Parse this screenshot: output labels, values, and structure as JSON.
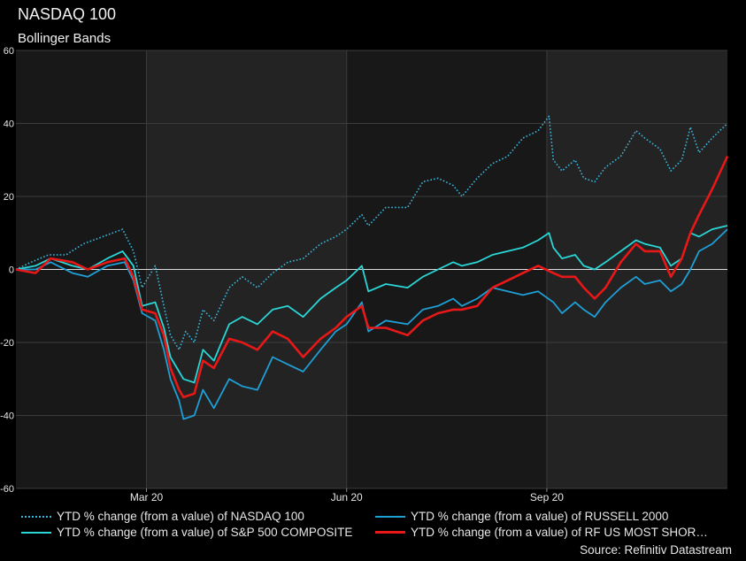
{
  "title": "NASDAQ 100",
  "subtitle": "Bollinger Bands",
  "source": "Source: Refinitiv Datastream",
  "colors": {
    "background": "#000000",
    "plot_bg_dark": "#181818",
    "plot_bg_light": "#232323",
    "grid": "#3c3c3c",
    "zero_line": "#dcdcdc",
    "nasdaq": "#3ab8e0",
    "russell": "#1e9fd6",
    "sp500": "#2ad6d6",
    "rf": "#e81818"
  },
  "chart_data": {
    "type": "line",
    "title": "NASDAQ 100",
    "subtitle": "Bollinger Bands",
    "x_tick_labels": [
      "Mar 20",
      "Jun 20",
      "Sep 20"
    ],
    "y_tick_labels": [
      "60",
      "40",
      "20",
      "0",
      "-20",
      "-40",
      "-60"
    ],
    "ylim": [
      -60,
      60
    ],
    "xlim": [
      "2020-01-01",
      "2020-11-23"
    ],
    "x_ticks": [
      "2020-03-01",
      "2020-06-01",
      "2020-09-01"
    ],
    "grid": true,
    "legend_position": "bottom",
    "series": [
      {
        "name": "YTD % change (from a value) of NASDAQ 100",
        "style": "dotted",
        "points": [
          [
            "2020-01-01",
            0
          ],
          [
            "2020-01-08",
            2
          ],
          [
            "2020-01-16",
            4
          ],
          [
            "2020-01-24",
            4
          ],
          [
            "2020-02-01",
            7
          ],
          [
            "2020-02-10",
            9
          ],
          [
            "2020-02-19",
            11
          ],
          [
            "2020-02-24",
            5
          ],
          [
            "2020-02-28",
            -5
          ],
          [
            "2020-03-05",
            1
          ],
          [
            "2020-03-09",
            -10
          ],
          [
            "2020-03-12",
            -18
          ],
          [
            "2020-03-16",
            -22
          ],
          [
            "2020-03-19",
            -17
          ],
          [
            "2020-03-23",
            -20
          ],
          [
            "2020-03-27",
            -11
          ],
          [
            "2020-04-01",
            -14
          ],
          [
            "2020-04-08",
            -5
          ],
          [
            "2020-04-14",
            -2
          ],
          [
            "2020-04-21",
            -5
          ],
          [
            "2020-04-28",
            -1
          ],
          [
            "2020-05-05",
            2
          ],
          [
            "2020-05-12",
            3
          ],
          [
            "2020-05-20",
            7
          ],
          [
            "2020-05-27",
            9
          ],
          [
            "2020-06-01",
            11
          ],
          [
            "2020-06-08",
            15
          ],
          [
            "2020-06-11",
            12
          ],
          [
            "2020-06-19",
            17
          ],
          [
            "2020-06-29",
            17
          ],
          [
            "2020-07-06",
            24
          ],
          [
            "2020-07-13",
            25
          ],
          [
            "2020-07-20",
            23
          ],
          [
            "2020-07-24",
            20
          ],
          [
            "2020-07-31",
            25
          ],
          [
            "2020-08-07",
            29
          ],
          [
            "2020-08-14",
            31
          ],
          [
            "2020-08-21",
            36
          ],
          [
            "2020-08-28",
            38
          ],
          [
            "2020-09-02",
            42
          ],
          [
            "2020-09-04",
            30
          ],
          [
            "2020-09-08",
            27
          ],
          [
            "2020-09-14",
            30
          ],
          [
            "2020-09-18",
            25
          ],
          [
            "2020-09-23",
            24
          ],
          [
            "2020-09-28",
            28
          ],
          [
            "2020-10-05",
            31
          ],
          [
            "2020-10-12",
            38
          ],
          [
            "2020-10-16",
            36
          ],
          [
            "2020-10-23",
            33
          ],
          [
            "2020-10-28",
            27
          ],
          [
            "2020-11-02",
            30
          ],
          [
            "2020-11-06",
            39
          ],
          [
            "2020-11-10",
            32
          ],
          [
            "2020-11-16",
            36
          ],
          [
            "2020-11-23",
            40
          ]
        ]
      },
      {
        "name": "YTD % change (from a value) of RUSSELL 2000",
        "style": "solid",
        "points": [
          [
            "2020-01-01",
            0
          ],
          [
            "2020-01-10",
            0
          ],
          [
            "2020-01-17",
            2
          ],
          [
            "2020-01-27",
            -1
          ],
          [
            "2020-02-03",
            -2
          ],
          [
            "2020-02-12",
            1
          ],
          [
            "2020-02-20",
            2
          ],
          [
            "2020-02-24",
            -3
          ],
          [
            "2020-02-28",
            -12
          ],
          [
            "2020-03-05",
            -14
          ],
          [
            "2020-03-09",
            -22
          ],
          [
            "2020-03-12",
            -30
          ],
          [
            "2020-03-16",
            -36
          ],
          [
            "2020-03-18",
            -41
          ],
          [
            "2020-03-23",
            -40
          ],
          [
            "2020-03-27",
            -33
          ],
          [
            "2020-04-01",
            -38
          ],
          [
            "2020-04-08",
            -30
          ],
          [
            "2020-04-14",
            -32
          ],
          [
            "2020-04-21",
            -33
          ],
          [
            "2020-04-28",
            -24
          ],
          [
            "2020-05-05",
            -26
          ],
          [
            "2020-05-12",
            -28
          ],
          [
            "2020-05-20",
            -22
          ],
          [
            "2020-05-27",
            -17
          ],
          [
            "2020-06-01",
            -15
          ],
          [
            "2020-06-08",
            -9
          ],
          [
            "2020-06-11",
            -17
          ],
          [
            "2020-06-19",
            -14
          ],
          [
            "2020-06-29",
            -15
          ],
          [
            "2020-07-06",
            -11
          ],
          [
            "2020-07-13",
            -10
          ],
          [
            "2020-07-20",
            -8
          ],
          [
            "2020-07-24",
            -10
          ],
          [
            "2020-07-31",
            -8
          ],
          [
            "2020-08-07",
            -5
          ],
          [
            "2020-08-14",
            -6
          ],
          [
            "2020-08-21",
            -7
          ],
          [
            "2020-08-28",
            -6
          ],
          [
            "2020-09-04",
            -9
          ],
          [
            "2020-09-08",
            -12
          ],
          [
            "2020-09-14",
            -9
          ],
          [
            "2020-09-18",
            -11
          ],
          [
            "2020-09-23",
            -13
          ],
          [
            "2020-09-28",
            -9
          ],
          [
            "2020-10-05",
            -5
          ],
          [
            "2020-10-12",
            -2
          ],
          [
            "2020-10-16",
            -4
          ],
          [
            "2020-10-23",
            -3
          ],
          [
            "2020-10-28",
            -6
          ],
          [
            "2020-11-02",
            -4
          ],
          [
            "2020-11-06",
            0
          ],
          [
            "2020-11-10",
            5
          ],
          [
            "2020-11-16",
            7
          ],
          [
            "2020-11-23",
            11
          ]
        ]
      },
      {
        "name": "YTD % change (from a value) of S&P 500 COMPOSITE",
        "style": "solid",
        "points": [
          [
            "2020-01-01",
            0
          ],
          [
            "2020-01-10",
            1
          ],
          [
            "2020-01-17",
            3
          ],
          [
            "2020-01-27",
            1
          ],
          [
            "2020-02-03",
            0
          ],
          [
            "2020-02-12",
            3
          ],
          [
            "2020-02-19",
            5
          ],
          [
            "2020-02-24",
            1
          ],
          [
            "2020-02-28",
            -10
          ],
          [
            "2020-03-05",
            -9
          ],
          [
            "2020-03-09",
            -16
          ],
          [
            "2020-03-12",
            -24
          ],
          [
            "2020-03-16",
            -28
          ],
          [
            "2020-03-18",
            -30
          ],
          [
            "2020-03-23",
            -31
          ],
          [
            "2020-03-27",
            -22
          ],
          [
            "2020-04-01",
            -25
          ],
          [
            "2020-04-08",
            -15
          ],
          [
            "2020-04-14",
            -13
          ],
          [
            "2020-04-21",
            -15
          ],
          [
            "2020-04-28",
            -11
          ],
          [
            "2020-05-05",
            -10
          ],
          [
            "2020-05-12",
            -13
          ],
          [
            "2020-05-20",
            -8
          ],
          [
            "2020-05-27",
            -5
          ],
          [
            "2020-06-01",
            -3
          ],
          [
            "2020-06-08",
            1
          ],
          [
            "2020-06-11",
            -6
          ],
          [
            "2020-06-19",
            -4
          ],
          [
            "2020-06-29",
            -5
          ],
          [
            "2020-07-06",
            -2
          ],
          [
            "2020-07-13",
            0
          ],
          [
            "2020-07-20",
            2
          ],
          [
            "2020-07-24",
            1
          ],
          [
            "2020-07-31",
            2
          ],
          [
            "2020-08-07",
            4
          ],
          [
            "2020-08-14",
            5
          ],
          [
            "2020-08-21",
            6
          ],
          [
            "2020-08-28",
            8
          ],
          [
            "2020-09-02",
            10
          ],
          [
            "2020-09-04",
            6
          ],
          [
            "2020-09-08",
            3
          ],
          [
            "2020-09-14",
            4
          ],
          [
            "2020-09-18",
            1
          ],
          [
            "2020-09-23",
            0
          ],
          [
            "2020-09-28",
            2
          ],
          [
            "2020-10-05",
            5
          ],
          [
            "2020-10-12",
            8
          ],
          [
            "2020-10-16",
            7
          ],
          [
            "2020-10-23",
            6
          ],
          [
            "2020-10-28",
            1
          ],
          [
            "2020-11-02",
            3
          ],
          [
            "2020-11-06",
            10
          ],
          [
            "2020-11-10",
            9
          ],
          [
            "2020-11-16",
            11
          ],
          [
            "2020-11-23",
            12
          ]
        ]
      },
      {
        "name": "YTD % change (from a value) of RF US MOST SHOR…",
        "style": "solid-bold",
        "points": [
          [
            "2020-01-01",
            0
          ],
          [
            "2020-01-10",
            -1
          ],
          [
            "2020-01-17",
            3
          ],
          [
            "2020-01-27",
            2
          ],
          [
            "2020-02-03",
            0
          ],
          [
            "2020-02-12",
            2
          ],
          [
            "2020-02-20",
            3
          ],
          [
            "2020-02-24",
            -2
          ],
          [
            "2020-02-28",
            -11
          ],
          [
            "2020-03-05",
            -12
          ],
          [
            "2020-03-09",
            -18
          ],
          [
            "2020-03-12",
            -27
          ],
          [
            "2020-03-16",
            -33
          ],
          [
            "2020-03-18",
            -35
          ],
          [
            "2020-03-23",
            -34
          ],
          [
            "2020-03-27",
            -25
          ],
          [
            "2020-04-01",
            -27
          ],
          [
            "2020-04-08",
            -19
          ],
          [
            "2020-04-14",
            -20
          ],
          [
            "2020-04-21",
            -22
          ],
          [
            "2020-04-28",
            -17
          ],
          [
            "2020-05-05",
            -19
          ],
          [
            "2020-05-12",
            -24
          ],
          [
            "2020-05-20",
            -19
          ],
          [
            "2020-05-27",
            -16
          ],
          [
            "2020-06-01",
            -13
          ],
          [
            "2020-06-08",
            -10
          ],
          [
            "2020-06-11",
            -16
          ],
          [
            "2020-06-19",
            -16
          ],
          [
            "2020-06-29",
            -18
          ],
          [
            "2020-07-06",
            -14
          ],
          [
            "2020-07-13",
            -12
          ],
          [
            "2020-07-20",
            -11
          ],
          [
            "2020-07-24",
            -11
          ],
          [
            "2020-07-31",
            -10
          ],
          [
            "2020-08-07",
            -5
          ],
          [
            "2020-08-14",
            -3
          ],
          [
            "2020-08-21",
            -1
          ],
          [
            "2020-08-28",
            1
          ],
          [
            "2020-09-04",
            -1
          ],
          [
            "2020-09-08",
            -2
          ],
          [
            "2020-09-14",
            -2
          ],
          [
            "2020-09-18",
            -5
          ],
          [
            "2020-09-23",
            -8
          ],
          [
            "2020-09-28",
            -5
          ],
          [
            "2020-10-05",
            2
          ],
          [
            "2020-10-12",
            7
          ],
          [
            "2020-10-16",
            5
          ],
          [
            "2020-10-23",
            5
          ],
          [
            "2020-10-28",
            -2
          ],
          [
            "2020-11-02",
            3
          ],
          [
            "2020-11-06",
            10
          ],
          [
            "2020-11-10",
            15
          ],
          [
            "2020-11-16",
            22
          ],
          [
            "2020-11-23",
            31
          ]
        ]
      }
    ]
  },
  "legend": [
    {
      "label": "YTD % change (from a value) of NASDAQ 100",
      "series": 0
    },
    {
      "label": "YTD % change (from a value) of RUSSELL 2000",
      "series": 1
    },
    {
      "label": "YTD % change (from a value) of S&P 500 COMPOSITE",
      "series": 2
    },
    {
      "label": "YTD % change (from a value) of RF US MOST SHOR…",
      "series": 3
    }
  ]
}
